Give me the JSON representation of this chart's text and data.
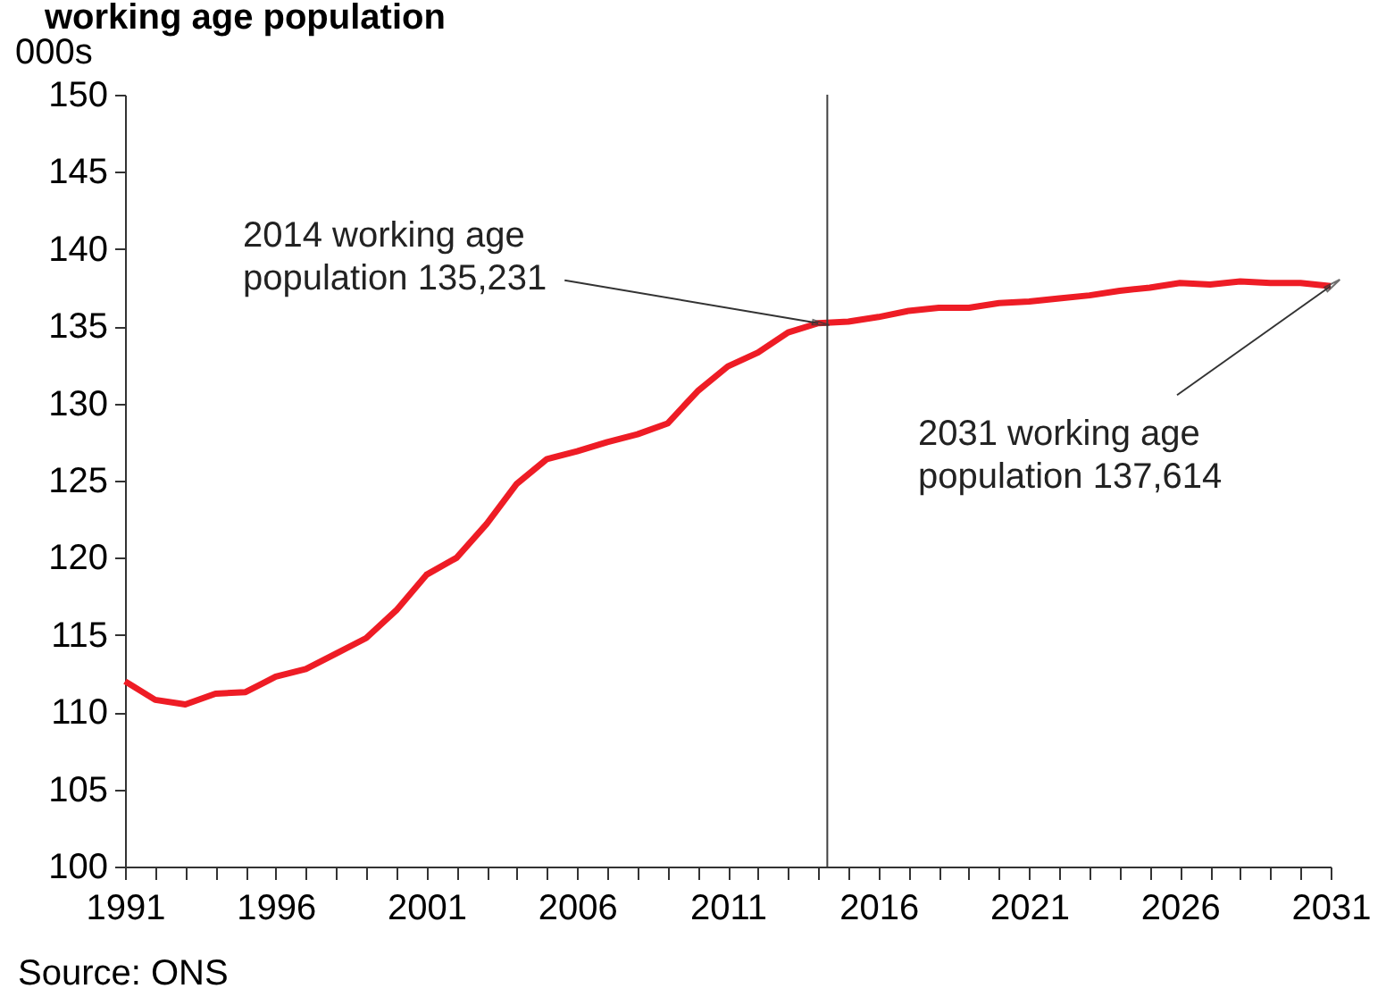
{
  "chart_data": {
    "type": "line",
    "title": "working age population",
    "ylabel": "000s",
    "x": [
      1991,
      1992,
      1993,
      1994,
      1995,
      1996,
      1997,
      1998,
      1999,
      2000,
      2001,
      2002,
      2003,
      2004,
      2005,
      2006,
      2007,
      2008,
      2009,
      2010,
      2011,
      2012,
      2013,
      2014,
      2015,
      2016,
      2017,
      2018,
      2019,
      2020,
      2021,
      2022,
      2023,
      2024,
      2025,
      2026,
      2027,
      2028,
      2029,
      2030,
      2031
    ],
    "series": [
      {
        "color": "#ee1c25",
        "values": [
          112.0,
          110.8,
          110.5,
          111.2,
          111.3,
          112.3,
          112.8,
          113.8,
          114.8,
          116.6,
          118.9,
          120.0,
          122.2,
          124.8,
          126.4,
          126.9,
          127.5,
          128.0,
          128.7,
          130.8,
          132.4,
          133.3,
          134.6,
          135.2,
          135.3,
          135.6,
          136.0,
          136.2,
          136.2,
          136.5,
          136.6,
          136.8,
          137.0,
          137.3,
          137.5,
          137.8,
          137.7,
          137.9,
          137.8,
          137.8,
          137.6
        ]
      }
    ],
    "xlim": [
      1991,
      2031
    ],
    "xticks": [
      1991,
      {
        "value": 1992,
        "label": null
      },
      {
        "value": 1993,
        "label": null
      },
      {
        "value": 1994,
        "label": null
      },
      {
        "value": 1995,
        "label": null
      },
      1996,
      {
        "value": 1997,
        "label": null
      },
      {
        "value": 1998,
        "label": null
      },
      {
        "value": 1999,
        "label": null
      },
      {
        "value": 2000,
        "label": null
      },
      2001,
      {
        "value": 2002,
        "label": null
      },
      {
        "value": 2003,
        "label": null
      },
      {
        "value": 2004,
        "label": null
      },
      {
        "value": 2005,
        "label": null
      },
      2006,
      {
        "value": 2007,
        "label": null
      },
      {
        "value": 2008,
        "label": null
      },
      {
        "value": 2009,
        "label": null
      },
      {
        "value": 2010,
        "label": null
      },
      2011,
      {
        "value": 2012,
        "label": null
      },
      {
        "value": 2013,
        "label": null
      },
      {
        "value": 2014,
        "label": null
      },
      {
        "value": 2015,
        "label": null
      },
      2016,
      {
        "value": 2017,
        "label": null
      },
      {
        "value": 2018,
        "label": null
      },
      {
        "value": 2019,
        "label": null
      },
      {
        "value": 2020,
        "label": null
      },
      2021,
      {
        "value": 2022,
        "label": null
      },
      {
        "value": 2023,
        "label": null
      },
      {
        "value": 2024,
        "label": null
      },
      {
        "value": 2025,
        "label": null
      },
      2026,
      {
        "value": 2027,
        "label": null
      },
      {
        "value": 2028,
        "label": null
      },
      {
        "value": 2029,
        "label": null
      },
      {
        "value": 2030,
        "label": null
      },
      2031
    ],
    "ylim": [
      100,
      150
    ],
    "yticks": [
      100,
      105,
      110,
      115,
      120,
      125,
      130,
      135,
      140,
      145,
      150
    ],
    "ref_lines": [
      {
        "axis": "x",
        "value": 2014.3,
        "color": "#404040"
      }
    ],
    "annotations": [
      {
        "text": "2014 working age\npopulation 135,231",
        "x": 2014,
        "y": 135.2
      },
      {
        "text": "2031 working age\npopulation 137,614",
        "x": 2031,
        "y": 137.6
      },
      "Source: ONS"
    ],
    "grid": false,
    "legend": false,
    "marker": "none",
    "line_style": "solid"
  }
}
